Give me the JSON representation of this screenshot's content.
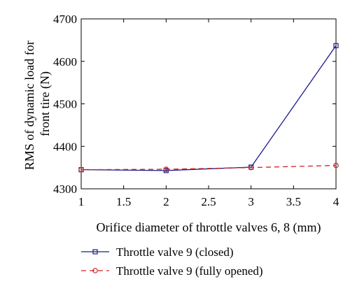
{
  "chart_data": {
    "type": "line",
    "xlabel": "Orifice diameter of throttle valves 6, 8 (mm)",
    "ylabel_lines": [
      "RMS of dynamic load for",
      "front tire (N)"
    ],
    "xlim": [
      1,
      4
    ],
    "ylim": [
      4300,
      4700
    ],
    "xticks": [
      1,
      1.5,
      2,
      2.5,
      3,
      3.5,
      4
    ],
    "xtick_labels": [
      "1",
      "1.5",
      "2",
      "2.5",
      "3",
      "3.5",
      "4"
    ],
    "yticks": [
      4300,
      4400,
      4500,
      4600,
      4700
    ],
    "ytick_labels": [
      "4300",
      "4400",
      "4500",
      "4600",
      "4700"
    ],
    "grid": false,
    "legend_position": "bottom",
    "series": [
      {
        "name": "Throttle valve 9 (closed)",
        "x": [
          1,
          2,
          3,
          4
        ],
        "y": [
          4345,
          4343,
          4351,
          4637
        ],
        "color": "#1a1a8c",
        "line_style": "solid",
        "marker": "square"
      },
      {
        "name": "Throttle valve 9 (fully opened)",
        "x": [
          1,
          2,
          3,
          4
        ],
        "y": [
          4345,
          4346,
          4350,
          4355
        ],
        "color": "#d42020",
        "line_style": "dashed",
        "marker": "circle"
      }
    ]
  }
}
